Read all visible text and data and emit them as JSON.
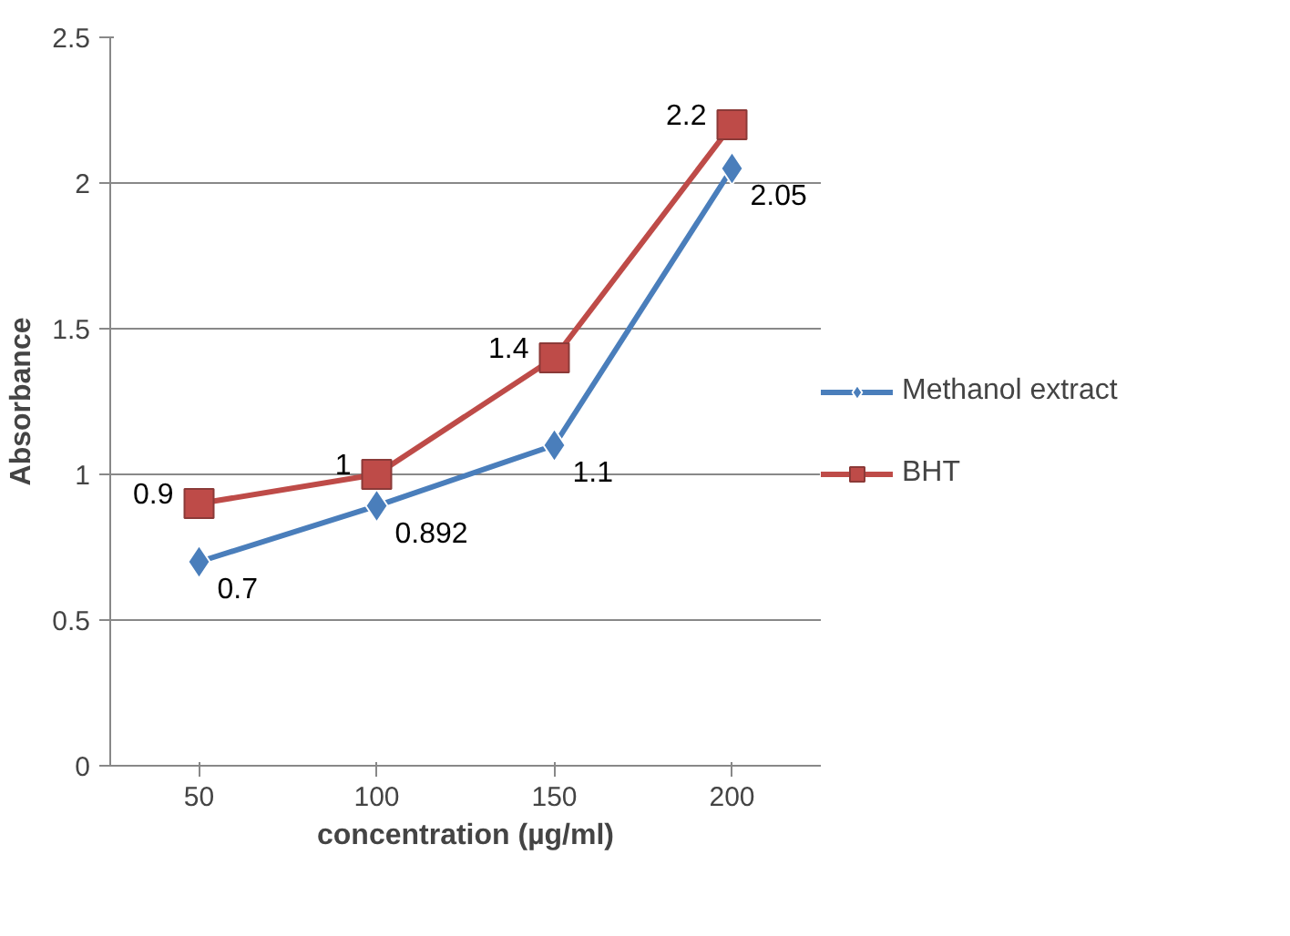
{
  "chart_data": {
    "type": "line",
    "xlabel": "concentration (µg/ml)",
    "ylabel": "Absorbance",
    "categories": [
      "50",
      "100",
      "150",
      "200"
    ],
    "series": [
      {
        "name": "Methanol extract",
        "color": "#4a7ebb",
        "marker": "diamond",
        "values": [
          0.7,
          0.892,
          1.1,
          2.05
        ]
      },
      {
        "name": "BHT",
        "color": "#be4b48",
        "marker": "square",
        "values": [
          0.9,
          1,
          1.4,
          2.2
        ]
      }
    ],
    "ylim": [
      0,
      2.5
    ],
    "yticks": [
      0,
      0.5,
      1,
      1.5,
      2,
      2.5
    ],
    "grid": "y",
    "legend": "right",
    "data_labels": true
  }
}
